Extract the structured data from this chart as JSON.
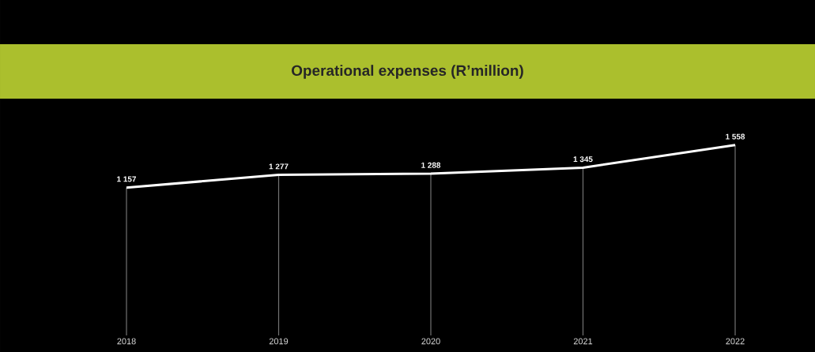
{
  "chart_data": {
    "type": "line",
    "title": "Operational expenses (R’million)",
    "categories": [
      "2018",
      "2019",
      "2020",
      "2021",
      "2022"
    ],
    "values": [
      1157,
      1277,
      1288,
      1345,
      1558
    ],
    "value_labels": [
      "1 157",
      "1 277",
      "1 288",
      "1 345",
      "1 558"
    ],
    "color": "#ffffff",
    "grid": "x",
    "line_style": "solid"
  }
}
